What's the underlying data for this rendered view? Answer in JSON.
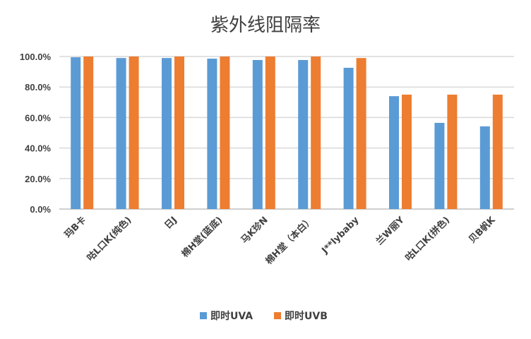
{
  "chart_data": {
    "type": "bar",
    "title": "紫外线阻隔率",
    "xlabel": "",
    "ylabel": "",
    "ylim": [
      0,
      100
    ],
    "yticks": [
      "0.0%",
      "20.0%",
      "40.0%",
      "60.0%",
      "80.0%",
      "100.0%"
    ],
    "grid": true,
    "legend_position": "bottom",
    "categories": [
      "玛B卡",
      "咕L口K(纯色)",
      "日J",
      "棉H堂(蓝底)",
      "马K珍N",
      "棉H堂（本白）",
      "J**lybaby",
      "兰W丽Y",
      "咕L口K(拼色)",
      "贝B帆K"
    ],
    "series": [
      {
        "name": "即时UVA",
        "color": "#5B9BD5",
        "values": [
          99.5,
          99.0,
          99.0,
          98.6,
          97.7,
          97.7,
          92.6,
          74.0,
          56.5,
          54.2
        ]
      },
      {
        "name": "即时UVB",
        "color": "#ED7D31",
        "values": [
          100,
          100,
          100,
          100,
          100,
          100,
          99.0,
          75.0,
          75.0,
          75.0
        ]
      }
    ]
  }
}
